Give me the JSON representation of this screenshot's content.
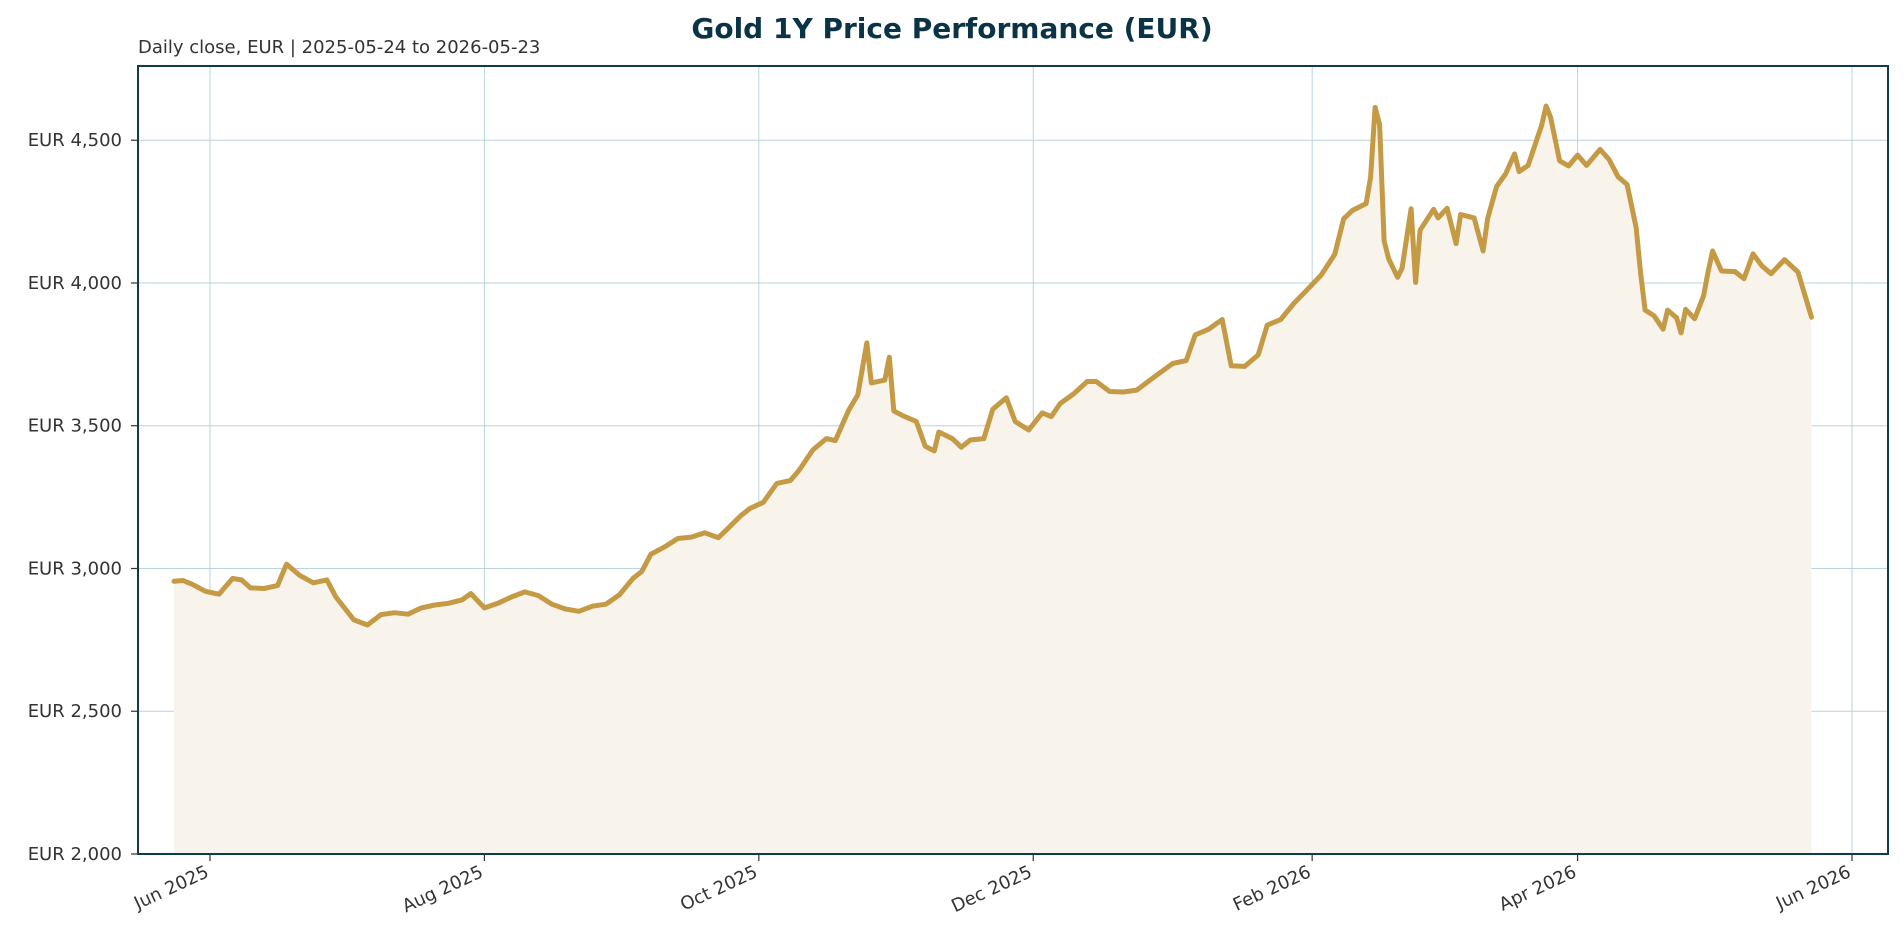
{
  "chart_data": {
    "type": "area",
    "title": "Gold 1Y Price Performance (EUR)",
    "subtitle": "Daily close, EUR | 2025-05-24 to 2026-05-23",
    "xlabel": "",
    "ylabel": "",
    "ylim": [
      2000,
      4760
    ],
    "xlim": [
      "2025-05-16",
      "2026-06-09"
    ],
    "y_tick_values": [
      2000,
      2500,
      3000,
      3500,
      4000,
      4500
    ],
    "y_tick_labels": [
      "EUR 2,000",
      "EUR 2,500",
      "EUR 3,000",
      "EUR 3,500",
      "EUR 4,000",
      "EUR 4,500"
    ],
    "x_ticks": [
      {
        "date": "2025-06-01",
        "label": "Jun 2025"
      },
      {
        "date": "2025-08-01",
        "label": "Aug 2025"
      },
      {
        "date": "2025-10-01",
        "label": "Oct 2025"
      },
      {
        "date": "2025-12-01",
        "label": "Dec 2025"
      },
      {
        "date": "2026-02-01",
        "label": "Feb 2026"
      },
      {
        "date": "2026-04-01",
        "label": "Apr 2026"
      },
      {
        "date": "2026-06-01",
        "label": "Jun 2026"
      }
    ],
    "grid": true,
    "legend": "none",
    "colors": {
      "line": "#c49a45",
      "fill": "#f8f4ec",
      "grid": "#b9d4de",
      "frame": "#0f3b4f",
      "title": "#0b3346",
      "text": "#333333"
    },
    "series": [
      {
        "points": [
          [
            "2025-05-24",
            2955
          ],
          [
            "2025-05-26",
            2958
          ],
          [
            "2025-05-28",
            2945
          ],
          [
            "2025-05-31",
            2920
          ],
          [
            "2025-06-03",
            2910
          ],
          [
            "2025-06-06",
            2965
          ],
          [
            "2025-06-08",
            2960
          ],
          [
            "2025-06-10",
            2932
          ],
          [
            "2025-06-13",
            2930
          ],
          [
            "2025-06-16",
            2940
          ],
          [
            "2025-06-18",
            3015
          ],
          [
            "2025-06-21",
            2975
          ],
          [
            "2025-06-24",
            2950
          ],
          [
            "2025-06-27",
            2960
          ],
          [
            "2025-06-29",
            2900
          ],
          [
            "2025-07-03",
            2820
          ],
          [
            "2025-07-06",
            2802
          ],
          [
            "2025-07-09",
            2838
          ],
          [
            "2025-07-12",
            2845
          ],
          [
            "2025-07-15",
            2840
          ],
          [
            "2025-07-18",
            2862
          ],
          [
            "2025-07-21",
            2872
          ],
          [
            "2025-07-24",
            2878
          ],
          [
            "2025-07-27",
            2890
          ],
          [
            "2025-07-29",
            2912
          ],
          [
            "2025-08-01",
            2862
          ],
          [
            "2025-08-04",
            2878
          ],
          [
            "2025-08-07",
            2900
          ],
          [
            "2025-08-10",
            2918
          ],
          [
            "2025-08-13",
            2905
          ],
          [
            "2025-08-16",
            2875
          ],
          [
            "2025-08-19",
            2858
          ],
          [
            "2025-08-22",
            2850
          ],
          [
            "2025-08-25",
            2868
          ],
          [
            "2025-08-28",
            2875
          ],
          [
            "2025-08-31",
            2908
          ],
          [
            "2025-09-03",
            2965
          ],
          [
            "2025-09-05",
            2990
          ],
          [
            "2025-09-07",
            3050
          ],
          [
            "2025-09-10",
            3075
          ],
          [
            "2025-09-13",
            3105
          ],
          [
            "2025-09-16",
            3110
          ],
          [
            "2025-09-19",
            3125
          ],
          [
            "2025-09-22",
            3108
          ],
          [
            "2025-09-24",
            3138
          ],
          [
            "2025-09-27",
            3185
          ],
          [
            "2025-09-29",
            3210
          ],
          [
            "2025-10-02",
            3232
          ],
          [
            "2025-10-05",
            3298
          ],
          [
            "2025-10-08",
            3308
          ],
          [
            "2025-10-10",
            3345
          ],
          [
            "2025-10-13",
            3415
          ],
          [
            "2025-10-16",
            3455
          ],
          [
            "2025-10-18",
            3448
          ],
          [
            "2025-10-21",
            3555
          ],
          [
            "2025-10-23",
            3608
          ],
          [
            "2025-10-25",
            3790
          ],
          [
            "2025-10-26",
            3650
          ],
          [
            "2025-10-29",
            3660
          ],
          [
            "2025-10-30",
            3740
          ],
          [
            "2025-10-31",
            3552
          ],
          [
            "2025-11-02",
            3535
          ],
          [
            "2025-11-05",
            3515
          ],
          [
            "2025-11-07",
            3428
          ],
          [
            "2025-11-09",
            3412
          ],
          [
            "2025-11-10",
            3478
          ],
          [
            "2025-11-13",
            3455
          ],
          [
            "2025-11-15",
            3425
          ],
          [
            "2025-11-17",
            3450
          ],
          [
            "2025-11-20",
            3455
          ],
          [
            "2025-11-22",
            3558
          ],
          [
            "2025-11-25",
            3598
          ],
          [
            "2025-11-27",
            3515
          ],
          [
            "2025-11-30",
            3485
          ],
          [
            "2025-12-03",
            3545
          ],
          [
            "2025-12-05",
            3532
          ],
          [
            "2025-12-07",
            3578
          ],
          [
            "2025-12-10",
            3612
          ],
          [
            "2025-12-13",
            3655
          ],
          [
            "2025-12-15",
            3655
          ],
          [
            "2025-12-18",
            3620
          ],
          [
            "2025-12-21",
            3618
          ],
          [
            "2025-12-24",
            3625
          ],
          [
            "2025-12-28",
            3672
          ],
          [
            "2026-01-01",
            3718
          ],
          [
            "2026-01-04",
            3728
          ],
          [
            "2026-01-06",
            3818
          ],
          [
            "2026-01-09",
            3838
          ],
          [
            "2026-01-12",
            3872
          ],
          [
            "2026-01-14",
            3710
          ],
          [
            "2026-01-17",
            3708
          ],
          [
            "2026-01-20",
            3748
          ],
          [
            "2026-01-22",
            3852
          ],
          [
            "2026-01-25",
            3872
          ],
          [
            "2026-01-28",
            3930
          ],
          [
            "2026-01-31",
            3978
          ],
          [
            "2026-02-03",
            4028
          ],
          [
            "2026-02-06",
            4100
          ],
          [
            "2026-02-08",
            4225
          ],
          [
            "2026-02-10",
            4255
          ],
          [
            "2026-02-13",
            4278
          ],
          [
            "2026-02-14",
            4370
          ],
          [
            "2026-02-15",
            4615
          ],
          [
            "2026-02-16",
            4555
          ],
          [
            "2026-02-17",
            4148
          ],
          [
            "2026-02-18",
            4085
          ],
          [
            "2026-02-20",
            4020
          ],
          [
            "2026-02-21",
            4052
          ],
          [
            "2026-02-23",
            4260
          ],
          [
            "2026-02-24",
            4002
          ],
          [
            "2026-02-25",
            4185
          ],
          [
            "2026-02-28",
            4258
          ],
          [
            "2026-03-01",
            4228
          ],
          [
            "2026-03-03",
            4262
          ],
          [
            "2026-03-05",
            4138
          ],
          [
            "2026-03-06",
            4240
          ],
          [
            "2026-03-09",
            4228
          ],
          [
            "2026-03-11",
            4112
          ],
          [
            "2026-03-12",
            4225
          ],
          [
            "2026-03-14",
            4338
          ],
          [
            "2026-03-16",
            4382
          ],
          [
            "2026-03-18",
            4452
          ],
          [
            "2026-03-19",
            4390
          ],
          [
            "2026-03-21",
            4412
          ],
          [
            "2026-03-24",
            4552
          ],
          [
            "2026-03-25",
            4620
          ],
          [
            "2026-03-26",
            4580
          ],
          [
            "2026-03-28",
            4428
          ],
          [
            "2026-03-30",
            4410
          ],
          [
            "2026-04-01",
            4448
          ],
          [
            "2026-04-03",
            4412
          ],
          [
            "2026-04-06",
            4468
          ],
          [
            "2026-04-08",
            4432
          ],
          [
            "2026-04-10",
            4372
          ],
          [
            "2026-04-12",
            4345
          ],
          [
            "2026-04-14",
            4195
          ],
          [
            "2026-04-15",
            4035
          ],
          [
            "2026-04-16",
            3905
          ],
          [
            "2026-04-18",
            3885
          ],
          [
            "2026-04-20",
            3838
          ],
          [
            "2026-04-21",
            3905
          ],
          [
            "2026-04-23",
            3878
          ],
          [
            "2026-04-24",
            3825
          ],
          [
            "2026-04-25",
            3908
          ],
          [
            "2026-04-27",
            3875
          ],
          [
            "2026-04-29",
            3955
          ],
          [
            "2026-04-30",
            4040
          ],
          [
            "2026-05-01",
            4112
          ],
          [
            "2026-05-03",
            4042
          ],
          [
            "2026-05-06",
            4040
          ],
          [
            "2026-05-08",
            4015
          ],
          [
            "2026-05-10",
            4102
          ],
          [
            "2026-05-12",
            4060
          ],
          [
            "2026-05-14",
            4032
          ],
          [
            "2026-05-17",
            4082
          ],
          [
            "2026-05-20",
            4038
          ],
          [
            "2026-05-23",
            3880
          ]
        ]
      }
    ]
  }
}
